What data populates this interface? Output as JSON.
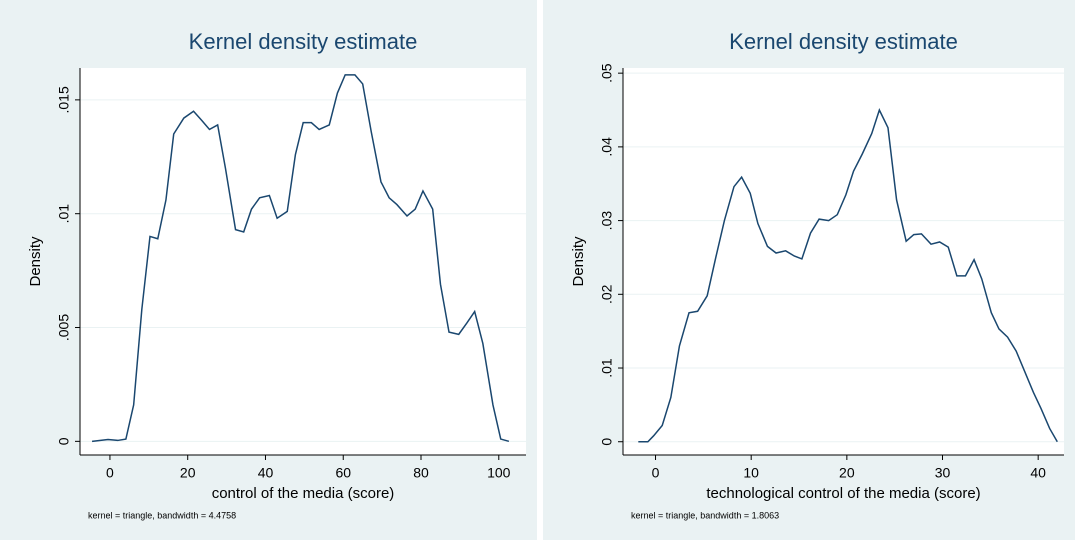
{
  "chart_data": [
    {
      "type": "line",
      "title": "Kernel density estimate",
      "xlabel": "control of the media (score)",
      "ylabel": "Density",
      "note": "kernel = triangle, bandwidth = 4.4758",
      "color": "#1a476f",
      "grid": true,
      "x": [
        -4.6,
        -0.5,
        2,
        4.1,
        6.1,
        8.2,
        10.3,
        12.3,
        14.4,
        16.4,
        19,
        21.5,
        23.6,
        25.6,
        27.7,
        29.7,
        32.3,
        34.4,
        36.4,
        38.5,
        41,
        43,
        45.6,
        47.7,
        49.7,
        51.8,
        53.8,
        56.4,
        58.5,
        60.5,
        63,
        65,
        67.2,
        69.7,
        71.8,
        73.8,
        76.4,
        78.5,
        80.5,
        83,
        85,
        87.2,
        89.7,
        91.8,
        93.8,
        95.9,
        98.5,
        100.5,
        102.6
      ],
      "values": [
        0,
        8e-05,
        4e-05,
        0.0001,
        0.0016,
        0.0058,
        0.009,
        0.0089,
        0.0106,
        0.0135,
        0.0142,
        0.0145,
        0.0141,
        0.0137,
        0.0139,
        0.012,
        0.0093,
        0.0092,
        0.0102,
        0.0107,
        0.0108,
        0.0098,
        0.0101,
        0.0126,
        0.014,
        0.014,
        0.0137,
        0.0139,
        0.0153,
        0.0161,
        0.0161,
        0.0157,
        0.0136,
        0.0114,
        0.0107,
        0.0104,
        0.0099,
        0.0102,
        0.011,
        0.0102,
        0.0069,
        0.0048,
        0.0047,
        0.0052,
        0.0057,
        0.0043,
        0.0016,
        0.0001,
        0
      ],
      "xlim": [
        -7.7,
        107
      ],
      "xticks": [
        0,
        20,
        40,
        60,
        80,
        100
      ],
      "ylim": [
        -0.0006,
        0.0164
      ],
      "yticks": [
        0,
        {
          "value": 0.005,
          "label": ".005"
        },
        {
          "value": 0.01,
          "label": ".01"
        },
        {
          "value": 0.015,
          "label": ".015"
        }
      ]
    },
    {
      "type": "line",
      "title": "Kernel density estimate",
      "xlabel": "technological control of the media (score)",
      "ylabel": "Density",
      "note": "kernel = triangle, bandwidth = 1.8063",
      "color": "#1a476f",
      "grid": true,
      "x": [
        -1.8,
        -0.8,
        -0.2,
        0.7,
        1.6,
        2.5,
        3.5,
        4.4,
        5.4,
        6.3,
        7.2,
        8.2,
        9,
        9.9,
        10.7,
        11.7,
        12.6,
        13.6,
        14.5,
        15.3,
        16.2,
        17.1,
        18.1,
        19,
        19.9,
        20.7,
        21.6,
        22.6,
        23.4,
        24.3,
        25.2,
        26.2,
        27,
        27.8,
        28.8,
        29.7,
        30.6,
        31.5,
        32.4,
        33.3,
        34.1,
        35.1,
        35.9,
        36.8,
        37.7,
        38.6,
        39.5,
        40.3,
        41.2,
        42
      ],
      "values": [
        0,
        0,
        0.0008,
        0.0022,
        0.006,
        0.013,
        0.0175,
        0.0177,
        0.0198,
        0.025,
        0.03,
        0.0346,
        0.0359,
        0.0337,
        0.0296,
        0.0265,
        0.0256,
        0.0259,
        0.0252,
        0.0248,
        0.0283,
        0.0302,
        0.03,
        0.0308,
        0.0335,
        0.0367,
        0.039,
        0.0418,
        0.045,
        0.0426,
        0.0328,
        0.0272,
        0.0281,
        0.0282,
        0.0268,
        0.0271,
        0.0264,
        0.0225,
        0.0225,
        0.0247,
        0.0221,
        0.0175,
        0.0153,
        0.0142,
        0.0123,
        0.0095,
        0.0067,
        0.0045,
        0.0018,
        0
      ],
      "xlim": [
        -3.4,
        42.7
      ],
      "xticks": [
        0,
        10,
        20,
        30,
        40
      ],
      "ylim": [
        -0.0018,
        0.0507
      ],
      "yticks": [
        0,
        {
          "value": 0.01,
          "label": ".01"
        },
        {
          "value": 0.02,
          "label": ".02"
        },
        {
          "value": 0.03,
          "label": ".03"
        },
        {
          "value": 0.04,
          "label": ".04"
        },
        {
          "value": 0.05,
          "label": ".05"
        }
      ]
    }
  ]
}
